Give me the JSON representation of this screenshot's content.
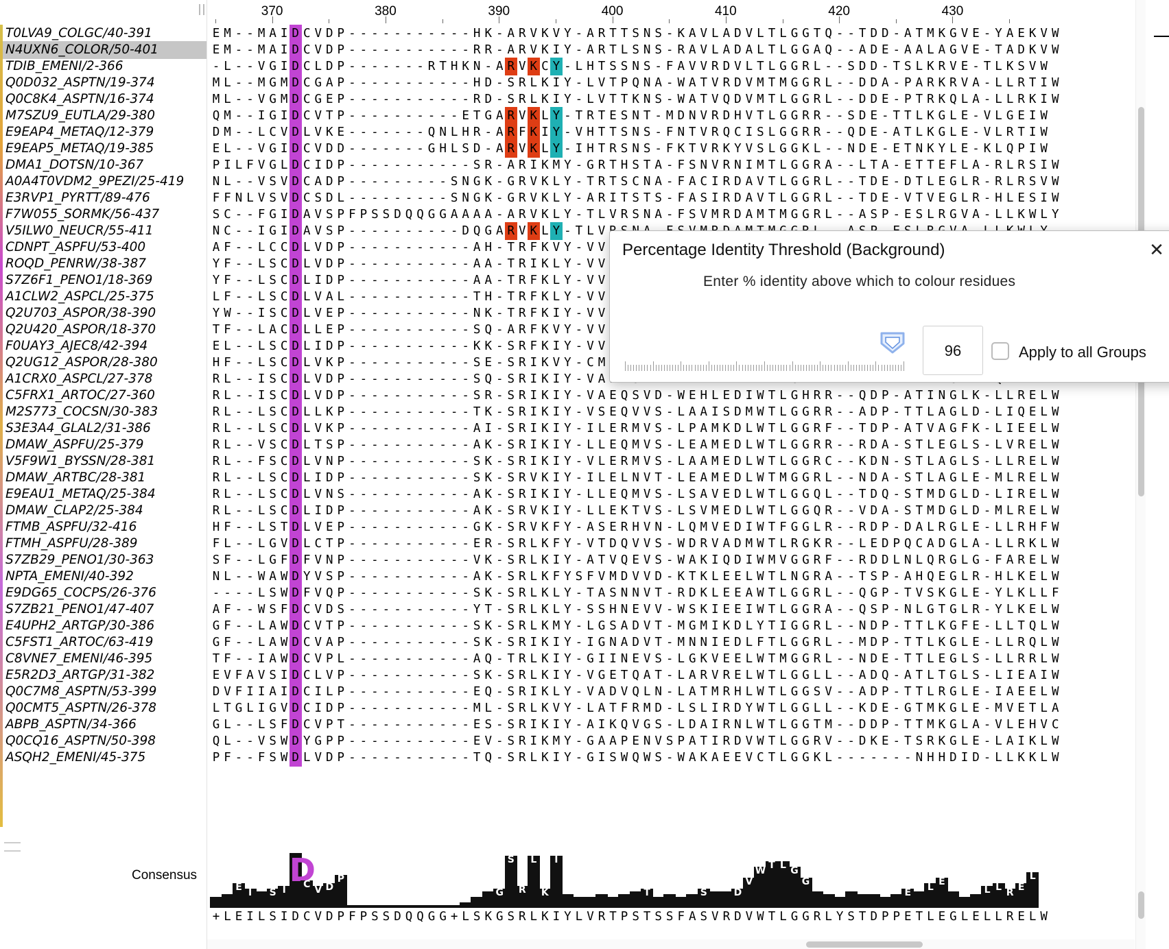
{
  "ruler": {
    "start": 365,
    "labels": [
      "370",
      "380",
      "390",
      "400",
      "410",
      "420",
      "430"
    ]
  },
  "sequences": [
    {
      "name": "T0LVA9_COLGC/40-391",
      "seq": "EM--MAIDCVDP-----------HK-ARVKVY-ARTTSNS-KAVLADVLTLGGTQ--TDD-ATMKGVE-YAEKVW"
    },
    {
      "name": "N4UXN6_COLOR/50-401",
      "seq": "EM--MAIDCVDP-----------RR-ARVKIY-ARTLSNS-RAVLADALTLGGAQ--ADE-AALAGVE-TADKVW"
    },
    {
      "name": "TDIB_EMENI/2-366",
      "seq": "-L--VGIDCLDP-------RTHKN-ARVKCY-LHTSSNS-FAVVRDVLTLGGRL--SDD-TSLKRVE-TLKSVW"
    },
    {
      "name": "Q0D032_ASPTN/19-374",
      "seq": "ML--MGMDCGAP-----------HD-SRLKIY-LVTPQNA-WATVRDVMTMGGRL--DDA-PARKRVA-LLRTIW"
    },
    {
      "name": "Q0C8K4_ASPTN/16-374",
      "seq": "ML--VGMDCGEP-----------RD-SRLKIY-LVTTKNS-WATVQDVMTLGGRL--DDE-PTRKQLA-LLRKIW"
    },
    {
      "name": "M7SZU9_EUTLA/29-380",
      "seq": "QM--IGIDCVTP----------ETGARVKLY-TRTESNT-MDNVRDHVTLGGRR--SDE-TTLKGLE-VLGEIW"
    },
    {
      "name": "E9EAP4_METAQ/12-379",
      "seq": "DM--LCVDLVKE-------QNLHR-ARFKIY-VHTTSNS-FNTVRQCISLGGRR--QDE-ATLKGLE-VLRTIW"
    },
    {
      "name": "E9EAP5_METAQ/19-385",
      "seq": "EL--VGIDCVDD-------GHLSD-ARVKLY-IHTRSNS-FKTVRKYVSLGGKL--NDE-ETNKYLE-KLQPIW"
    },
    {
      "name": "DMA1_DOTSN/10-367",
      "seq": "PILFVGLDCIDP-----------SR-ARIKMY-GRTHSTA-FSNVRNIMTLGGRA--LTA-ETTEFLA-RLRSIW"
    },
    {
      "name": "A0A4T0VDM2_9PEZI/25-419",
      "seq": "NL--VSVDCADP---------SNGK-GRVKLY-TRTSCNA-FACIRDAVTLGGRL--TDE-DTLEGLR-RLRSVW"
    },
    {
      "name": "E3RVP1_PYRTT/89-476",
      "seq": "FFNLVSVDCSDL---------SNGK-GRVKLY-ARITSTS-FASIRDAVTLGGRL--TDE-VTVEGLR-HLESIW"
    },
    {
      "name": "F7W055_SORMK/56-437",
      "seq": "SC--FGIDAVSPFPSSDQQGGAAAA-ARVKLY-TLVRSNA-FSVMRDAMTMGGRL--ASP-ESLRGVA-LLKWLY"
    },
    {
      "name": "V5ILW0_NEUCR/55-411",
      "seq": "NC--IGIDAVSP----------DQGARVKLY-TLVRSNA-FSVMRDAMTMGGRL--ASP-ESLRGVA-LLKWLY"
    },
    {
      "name": "CDNPT_ASPFU/53-400",
      "seq": "AF--LCCDLVDP-----------AH-TRFKVY-VVEPNVP-LAGLRDVLTLGGRL--SDE-TTLAGLD-LLRKLW"
    },
    {
      "name": "ROQD_PENRW/38-387",
      "seq": "YF--LSCDLVDP-----------AA-TRIKLY-VVEPNVP-LAGLRDVLTLGGRL--SDE-TTLAGLD-LLRKLW"
    },
    {
      "name": "S7Z6F1_PENO1/18-369",
      "seq": "YF--LSCDLIDP-----------AA-TRFKLY-VVEPNVP-LAGLRDVLTLGGRL--SDE-TTLAGLD-LLRKLW"
    },
    {
      "name": "A1CLW2_ASPCL/25-375",
      "seq": "LF--LSCDLVAL-----------TH-TRFKLY-VVEPNVP-LAGLRDVLTLGGRL--SDE-TTLAGLD-LLRKLW"
    },
    {
      "name": "Q2U703_ASPOR/38-390",
      "seq": "YW--ISCDLVEP-----------NK-TRFKIY-VVEPNVP-LAGLRDVLTLGGRL--SDE-TTLAGLD-LLRKLW"
    },
    {
      "name": "Q2U420_ASPOR/18-370",
      "seq": "TF--LACDLLEP-----------SQ-ARFKVY-VVEPNVP-LAGLRDVLTLGGRL--SDE-TTLAGLD-LLRKLW"
    },
    {
      "name": "F0UAY3_AJEC8/42-394",
      "seq": "EL--LSCDLIDP-----------KK-SRFKIY-VVEPNVP-LAGLRDVLTLGGRL--SDE-TTLAGLD-LLRKLW"
    },
    {
      "name": "Q2UG12_ASPOR/28-380",
      "seq": "HF--LSCDLVKP-----------SE-SRIKVY-CMERQLD-LASIEGIWTLNGRR--NDP-ETLDGLD-ALRELW"
    },
    {
      "name": "A1CRX0_ASPCL/27-378",
      "seq": "RL--ISCDLVDP-----------SQ-SRIKIY-VAEESVD-WEHLEDIWTLGHRR--RNP-VAMRGLE-QLRELW"
    },
    {
      "name": "C5FRX1_ARTOC/27-360",
      "seq": "RL--ISCDLVDP-----------SR-SRIKIY-VAEQSVD-WEHLEDIWTLGHRR--QDP-ATINGLK-LLRELW"
    },
    {
      "name": "M2S773_COCSN/30-383",
      "seq": "RL--LSCDLLKP-----------TK-SRIKIY-VSEQVVS-LAAISDMWTLGGRR--ADP-TTLAGLD-LIQELW"
    },
    {
      "name": "S3E3A4_GLAL2/31-386",
      "seq": "RL--LSCDLVKP-----------AI-SRIKIY-ILERMVS-LPAMKDLWTLGGRF--TDP-ATVAGFK-LIEELW"
    },
    {
      "name": "DMAW_ASPFU/25-379",
      "seq": "RL--VSCDLTSP-----------AK-SRIKIY-LLEQMVS-LEAMEDLWTLGGRR--RDA-STLEGLS-LVRELW"
    },
    {
      "name": "V5F9W1_BYSSN/28-381",
      "seq": "RL--FSCDLVNP-----------SK-SRIKIY-VLERMVS-LAAMEDLWTLGGRC--KDN-STLAGLS-LLRELW"
    },
    {
      "name": "DMAW_ARTBC/28-381",
      "seq": "RL--LSCDLIDP-----------SK-SRVKIY-ILELNVT-LEAMEDLWTMGGRL--NDA-STLAGLE-MLRELW"
    },
    {
      "name": "E9EAU1_METAQ/25-384",
      "seq": "RL--LSCDLVNS-----------AK-SRIKIY-LLEQMVS-LSAVEDLWTLGGQL--TDQ-STMDGLD-LIRELW"
    },
    {
      "name": "DMAW_CLAP2/25-384",
      "seq": "RL--LSCDLIDP-----------AK-SRVKIY-LLEKTVS-LSVMEDLWTLGGQR--VDA-STMDGLD-MLRELW"
    },
    {
      "name": "FTMB_ASPFU/32-416",
      "seq": "HF--LSTDLVEP-----------GK-SRVKFY-ASERHVN-LQMVEDIWTFGGLR--RDP-DALRGLE-LLRHFW"
    },
    {
      "name": "FTMH_ASPFU/28-389",
      "seq": "FL--LGVDLCTP-----------ER-SRLKFY-VTDQVVS-WDRVADMWTLRGKR--LEDPQCADGLA-LLRKLW"
    },
    {
      "name": "S7ZB29_PENO1/30-363",
      "seq": "SF--LGFDFVNP-----------VK-SRLKIY-ATVQEVS-WAKIQDIWMVGGRF--RDDLNLQRGLG-FARELW"
    },
    {
      "name": "NPTA_EMENI/40-392",
      "seq": "NL--WAWDYVSP-----------AK-SRLKFYSFVMDVVD-KTKLEELWTLNGRA--TSP-AHQEGLR-HLKELW"
    },
    {
      "name": "E9DG65_COCPS/26-376",
      "seq": "----LSWDFVQP-----------SK-SRLKLY-TASNNVT-RDKLEEAWTLGGRL--QGP-TVSKGLE-YLKLLF"
    },
    {
      "name": "S7ZB21_PENO1/47-407",
      "seq": "AF--WSFDCVDS-----------YT-SRLKLY-SSHNEVV-WSKIEEIWTLGGRA--QSP-NLGTGLR-YLKELW"
    },
    {
      "name": "E4UPH2_ARTGP/30-386",
      "seq": "GF--LAWDCVTP-----------SK-SRLKMY-LGSADVT-MGMIKDLYTIGGRL--NDP-TTLKGFE-LLTQLW"
    },
    {
      "name": "C5FST1_ARTOC/63-419",
      "seq": "GF--LAWDCVAP-----------SK-SRIKIY-IGNADVT-MNNIEDLFTLGGRL--MDP-TTLKGLE-LLRQLW"
    },
    {
      "name": "C8VNE7_EMENI/46-395",
      "seq": "TF--IAWDCVPL-----------AQ-TRLKIY-GIINEVS-LGKVEELWTMGGRL--NDE-TTLEGLS-LLRRLW"
    },
    {
      "name": "E5R2D3_ARTGP/31-382",
      "seq": "EVFAVSIDCLVP-----------SK-SRLKIY-VGETQAT-LARVRELWTLGGLL--ADQ-ATLTGLS-LIEAIW"
    },
    {
      "name": "Q0C7M8_ASPTN/53-399",
      "seq": "DVFIIAIDCILP-----------EQ-SRIKLY-VADVQLN-LATMRHLWTLGGSV--ADP-TTLRGLE-IAEELW"
    },
    {
      "name": "Q0CMT5_ASPTN/26-378",
      "seq": "LTGLIGVDCIDP-----------ML-SRLKVY-LATFRMD-LSLIRDYWTLGGLL--KDE-GTMKGLE-MVETLA"
    },
    {
      "name": "ABPB_ASPTN/34-366",
      "seq": "GL--LSFDCVPT-----------ES-SRIKIY-AIKQVGS-LDAIRNLWTLGGTM--DDP-TTMKGLA-VLEHVC"
    },
    {
      "name": "Q0CQ16_ASPTN/50-398",
      "seq": "QL--VSWDYGPP-----------EV-SRIKMY-GAAPENVSPATIRDVWTLGGRV--DKE-TSRKGLE-LAIKLW"
    },
    {
      "name": "ASQH2_EMENI/45-375",
      "seq": "PF--FSWDLVDP-----------TQ-SRLKIY-GISWQWS-WAKAEEVCTLGGKL-------NHHDID-LLKKLW"
    }
  ],
  "highlight_columns": [
    {
      "col": 7,
      "res": "D"
    },
    {
      "col": 26,
      "res": "R"
    },
    {
      "col": 28,
      "res": "K"
    },
    {
      "col": 30,
      "res": "Y"
    }
  ],
  "consensus": {
    "label": "Consensus",
    "sequence": "+LEILSIDCVDPFPSSDQQGG+LSKGSRLKIYLVRTPSTSSFASVRDVWTLGGRLYSTDPPETLEGLELLRELW",
    "logo_heights": [
      0.2,
      0.25,
      0.45,
      0.35,
      0.3,
      0.35,
      0.4,
      1.0,
      0.5,
      0.4,
      0.45,
      0.6,
      0.05,
      0.05,
      0.05,
      0.05,
      0.05,
      0.05,
      0.05,
      0.05,
      0.05,
      0.05,
      0.1,
      0.2,
      0.3,
      0.35,
      0.95,
      0.4,
      0.95,
      0.35,
      0.95,
      0.25,
      0.2,
      0.2,
      0.25,
      0.2,
      0.25,
      0.3,
      0.35,
      0.2,
      0.25,
      0.2,
      0.25,
      0.35,
      0.3,
      0.3,
      0.35,
      0.55,
      0.75,
      0.85,
      0.85,
      0.75,
      0.55,
      0.3,
      0.25,
      0.2,
      0.3,
      0.25,
      0.25,
      0.2,
      0.25,
      0.35,
      0.3,
      0.45,
      0.55,
      0.3,
      0.2,
      0.25,
      0.4,
      0.45,
      0.35,
      0.45,
      0.65
    ]
  },
  "dialog": {
    "title": "Percentage Identity Threshold (Background)",
    "message": "Enter % identity above which to colour residues",
    "value": "96",
    "slider_fraction": 0.96,
    "checkbox_label": "Apply to all Groups",
    "checked": false
  },
  "colors": {
    "D": "#c144d3",
    "R": "#de3d14",
    "K": "#de3d14",
    "Y": "#1fb0b3"
  }
}
